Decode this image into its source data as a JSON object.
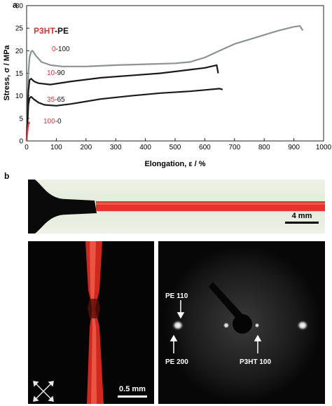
{
  "panels": {
    "a": "a",
    "b": "b"
  },
  "chart_data": {
    "type": "line",
    "legend_title": {
      "prefix": "P3HT",
      "suffix": "-PE"
    },
    "xlabel": "Elongation, ε / %",
    "ylabel": "Stress, σ / MPa",
    "xlim": [
      0,
      1000
    ],
    "ylim": [
      0,
      30
    ],
    "x_ticks": [
      "0",
      "100",
      "200",
      "300",
      "400",
      "500",
      "600",
      "700",
      "800",
      "900",
      "1000"
    ],
    "y_ticks": [
      "0",
      "5",
      "10",
      "15",
      "20",
      "25",
      "30"
    ],
    "grid": false,
    "series": [
      {
        "label_p3ht": "0",
        "label_pe": "-100",
        "color": "#8c9393",
        "x": [
          0,
          3,
          6,
          10,
          15,
          20,
          30,
          50,
          80,
          120,
          200,
          300,
          400,
          500,
          550,
          600,
          650,
          700,
          750,
          800,
          850,
          900,
          920,
          930
        ],
        "y": [
          0,
          8,
          15,
          18.5,
          19.8,
          20,
          19,
          17.5,
          16.8,
          16.5,
          16.5,
          16.8,
          17,
          17.2,
          17.5,
          18.5,
          20,
          21.5,
          22.5,
          23.5,
          24.5,
          25.3,
          25.5,
          24.5
        ]
      },
      {
        "label_p3ht": "10",
        "label_pe": "-90",
        "color": "#1a1a1a",
        "x": [
          0,
          3,
          6,
          10,
          15,
          25,
          40,
          80,
          150,
          250,
          350,
          450,
          550,
          600,
          640,
          645
        ],
        "y": [
          0,
          6,
          11,
          13.5,
          13.8,
          13.2,
          12.8,
          12.5,
          13.2,
          14,
          14.5,
          15,
          15.8,
          16.2,
          16.8,
          15
        ]
      },
      {
        "label_p3ht": "35",
        "label_pe": "-65",
        "color": "#1a1a1a",
        "x": [
          0,
          3,
          6,
          10,
          15,
          25,
          40,
          60,
          100,
          150,
          250,
          350,
          450,
          550,
          600,
          650,
          660
        ],
        "y": [
          0,
          4,
          8,
          9.5,
          9.8,
          9.2,
          8.5,
          8,
          7.8,
          8.2,
          9.3,
          10,
          10.6,
          11,
          11.3,
          11.6,
          11.4
        ]
      },
      {
        "label_p3ht": "100",
        "label_pe": "-0",
        "color": "#e03535",
        "x": [
          0,
          2,
          4,
          6,
          8,
          9
        ],
        "y": [
          0,
          1.5,
          2.8,
          3.6,
          4.1,
          3.8
        ]
      }
    ]
  },
  "photos": {
    "top_scale_bar": "4 mm",
    "bottom_left_scale_bar": "0.5 mm",
    "xray_labels": {
      "pe110": "PE 110",
      "pe200": "PE 200",
      "p3ht100": "P3HT 100"
    }
  },
  "colors": {
    "fiber_red": "#e8332d",
    "dark_bg": "#0c0c0c",
    "tape_bg": "#e8efe0"
  }
}
